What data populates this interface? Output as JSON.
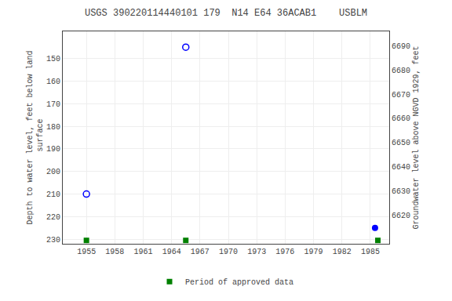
{
  "chart_data": {
    "type": "scatter",
    "title": "USGS 390220114440101 179  N14 E64 36ACAB1    USBLM",
    "ylabel": "Depth to water level, feet below land\n surface",
    "y2label": "Groundwater level above NGVD 1929, feet",
    "xlim": [
      1952.5,
      1987
    ],
    "xticks": [
      1955,
      1958,
      1961,
      1964,
      1967,
      1970,
      1973,
      1976,
      1979,
      1982,
      1985
    ],
    "ylim": [
      232,
      138
    ],
    "yticks": [
      150,
      160,
      170,
      180,
      190,
      200,
      210,
      220,
      230
    ],
    "y2lim": [
      6608,
      6696
    ],
    "y2ticks": [
      6620,
      6630,
      6640,
      6650,
      6660,
      6670,
      6680,
      6690
    ],
    "grid": true,
    "legend": "lower center",
    "series": [
      {
        "color": "#0000ff",
        "marker": "circle-open",
        "x": [
          1955.0,
          1965.5
        ],
        "values": [
          210.0,
          145.0
        ]
      },
      {
        "color": "#0000ff",
        "marker": "circle",
        "x": [
          1985.5
        ],
        "values": [
          225.0
        ]
      },
      {
        "name": "Period of approved data",
        "color": "#008000",
        "marker": "square",
        "x": [
          1955.0,
          1965.5,
          1985.8
        ],
        "values": [
          230.5,
          230.5,
          230.5
        ]
      }
    ]
  }
}
